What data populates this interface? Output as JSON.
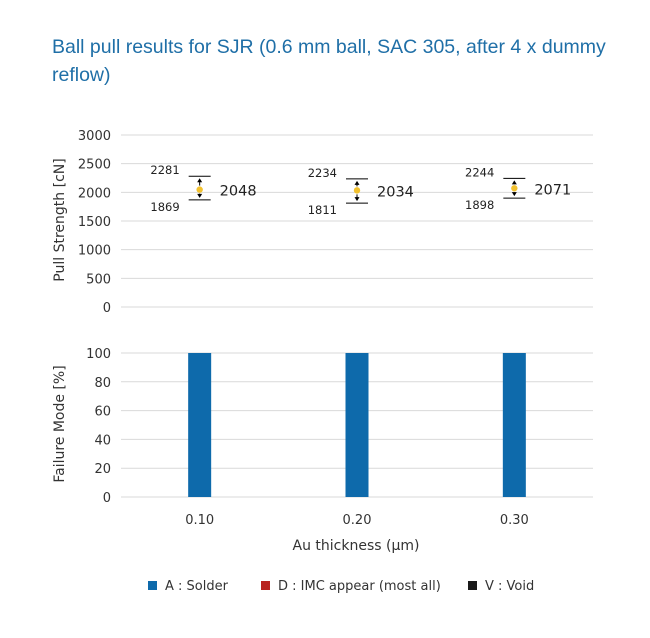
{
  "chart_data": [
    {
      "type": "scatter",
      "title": "Ball pull results for SJR (0.6 mm ball, SAC 305, after 4 x dummy reflow)",
      "ylabel": "Pull Strength [cN]",
      "ylim": [
        0,
        3000
      ],
      "yticks": [
        "3000",
        "2500",
        "2000",
        "1500",
        "1000",
        "500",
        "0"
      ],
      "grid": true,
      "colors": {
        "point": "#f2c12e",
        "errorbar": "#000000"
      },
      "categories": [
        "0.10",
        "0.20",
        "0.30"
      ],
      "points": [
        {
          "x": "0.10",
          "mean": 2048,
          "max": 2281,
          "min": 1869,
          "mean_label": "2048",
          "max_label": "2281",
          "min_label": "1869"
        },
        {
          "x": "0.20",
          "mean": 2034,
          "max": 2234,
          "min": 1811,
          "mean_label": "2034",
          "max_label": "2234",
          "min_label": "1811"
        },
        {
          "x": "0.30",
          "mean": 2071,
          "max": 2244,
          "min": 1898,
          "mean_label": "2071",
          "max_label": "2244",
          "min_label": "1898"
        }
      ]
    },
    {
      "type": "bar",
      "ylabel": "Failure Mode [%]",
      "xlabel": "Au thickness (μm)",
      "ylim": [
        0,
        100
      ],
      "yticks": [
        "100",
        "80",
        "60",
        "40",
        "20",
        "0"
      ],
      "grid": true,
      "categories": [
        "0.10",
        "0.20",
        "0.30"
      ],
      "series": [
        {
          "name": "A : Solder",
          "color": "#0e6aab",
          "values": [
            100,
            100,
            100
          ]
        },
        {
          "name": "D : IMC appear (most all)",
          "color": "#b8231f",
          "values": [
            0,
            0,
            0
          ]
        },
        {
          "name": "V : Void",
          "color": "#1a1a1a",
          "values": [
            0,
            0,
            0
          ]
        }
      ],
      "legend": "bottom"
    }
  ]
}
